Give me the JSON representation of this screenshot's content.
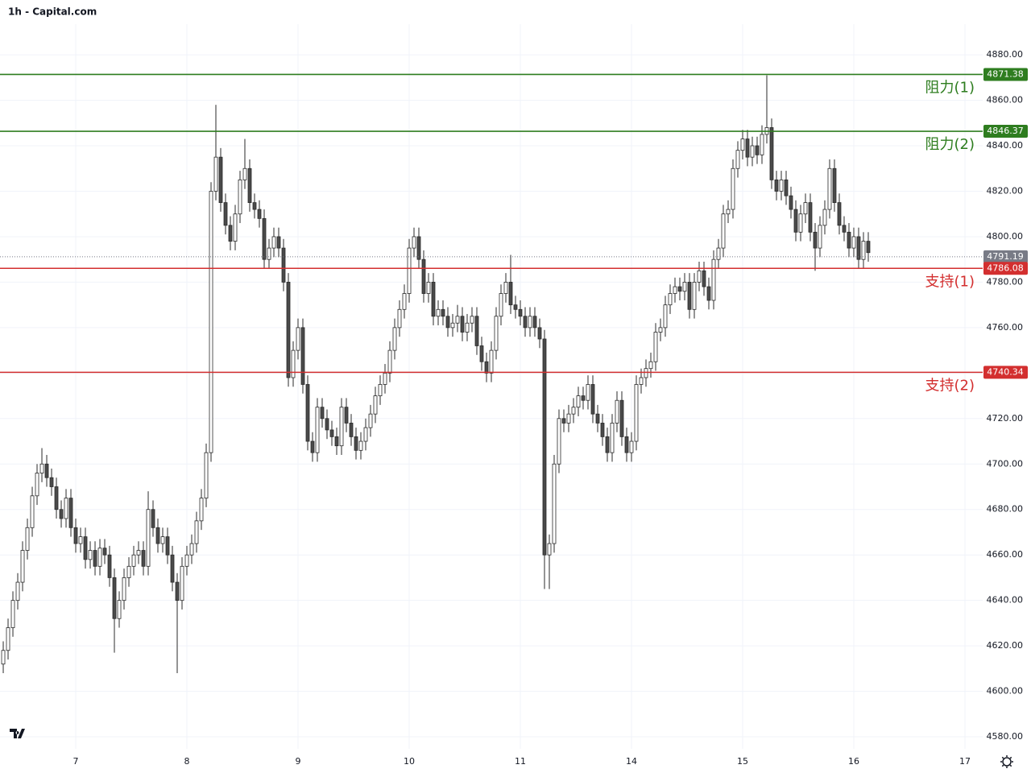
{
  "chart_data": {
    "type": "candlestick",
    "title": "1h - Capital.com",
    "x": [
      -15,
      -14,
      -13,
      -12,
      -11,
      -10,
      -9,
      -8,
      -7,
      -6,
      -5,
      -4,
      -3,
      -2,
      -1,
      0,
      1,
      2,
      3,
      4,
      5,
      6,
      7,
      8,
      9,
      10,
      11,
      12,
      13,
      14,
      15,
      16,
      17,
      18,
      19,
      20,
      21,
      22,
      23,
      24,
      25,
      26,
      27,
      28,
      29,
      30,
      31,
      32,
      33,
      34,
      35,
      36,
      37,
      38,
      39,
      40,
      41,
      42,
      43,
      44,
      45,
      46,
      47,
      48,
      49,
      50,
      51,
      52,
      53,
      54,
      55,
      56,
      57,
      58,
      59,
      60,
      61,
      62,
      63,
      64,
      65,
      66,
      67,
      68,
      69,
      70,
      71,
      72,
      73,
      74,
      75,
      76,
      77,
      78,
      79,
      80,
      81,
      82,
      83,
      84,
      85,
      86,
      87,
      88,
      89,
      90,
      91,
      92,
      93,
      94,
      95,
      96,
      97,
      98,
      99,
      100,
      101,
      102,
      103,
      104,
      105,
      106,
      107,
      108,
      109,
      110,
      111,
      112,
      113,
      114,
      115,
      116,
      117,
      118,
      119,
      120,
      121,
      122,
      123,
      124,
      125,
      126,
      127,
      128,
      129,
      130,
      131,
      132,
      133,
      134,
      135,
      136,
      137,
      138,
      139,
      140,
      141,
      142,
      143,
      144,
      145,
      146,
      147,
      148,
      149,
      150,
      151,
      152,
      153,
      154,
      155,
      156,
      157,
      158,
      159,
      160,
      161,
      162,
      163,
      164
    ],
    "open": [
      4612,
      4618,
      4628,
      4640,
      4648,
      4662,
      4672,
      4686,
      4696,
      4700,
      4694,
      4690,
      4680,
      4676,
      4685,
      4672,
      4665,
      4668,
      4658,
      4662,
      4655,
      4663,
      4660,
      4650,
      4632,
      4640,
      4650,
      4655,
      4660,
      4662,
      4655,
      4680,
      4672,
      4665,
      4668,
      4660,
      4648,
      4640,
      4655,
      4660,
      4665,
      4675,
      4685,
      4705,
      4820,
      4835,
      4815,
      4805,
      4798,
      4810,
      4825,
      4830,
      4815,
      4812,
      4808,
      4790,
      4795,
      4800,
      4795,
      4780,
      4738,
      4750,
      4760,
      4735,
      4710,
      4705,
      4725,
      4720,
      4715,
      4712,
      4708,
      4725,
      4718,
      4712,
      4706,
      4710,
      4716,
      4722,
      4730,
      4735,
      4740,
      4750,
      4760,
      4768,
      4775,
      4795,
      4800,
      4790,
      4775,
      4780,
      4765,
      4768,
      4765,
      4760,
      4762,
      4765,
      4758,
      4762,
      4765,
      4752,
      4745,
      4740,
      4750,
      4765,
      4775,
      4780,
      4770,
      4768,
      4765,
      4760,
      4765,
      4760,
      4755,
      4660,
      4665,
      4700,
      4720,
      4718,
      4722,
      4725,
      4730,
      4728,
      4735,
      4722,
      4718,
      4712,
      4705,
      4718,
      4728,
      4712,
      4705,
      4710,
      4735,
      4738,
      4742,
      4745,
      4758,
      4760,
      4770,
      4775,
      4778,
      4776,
      4780,
      4768,
      4780,
      4785,
      4778,
      4772,
      4790,
      4795,
      4810,
      4812,
      4830,
      4838,
      4843,
      4835,
      4840,
      4836,
      4845,
      4848,
      4825,
      4820,
      4825,
      4818,
      4812,
      4802,
      4810,
      4815,
      4802,
      4795,
      4805,
      4812,
      4830,
      4815,
      4805,
      4802,
      4795,
      4800,
      4790,
      4798
    ],
    "high": [
      4622,
      4632,
      4644,
      4652,
      4666,
      4676,
      4690,
      4700,
      4707,
      4704,
      4698,
      4694,
      4684,
      4689,
      4689,
      4676,
      4672,
      4672,
      4666,
      4666,
      4667,
      4667,
      4664,
      4654,
      4644,
      4654,
      4659,
      4664,
      4666,
      4666,
      4688,
      4684,
      4676,
      4672,
      4672,
      4664,
      4652,
      4659,
      4664,
      4669,
      4679,
      4689,
      4709,
      4824,
      4858,
      4839,
      4819,
      4809,
      4814,
      4829,
      4843,
      4834,
      4819,
      4816,
      4812,
      4799,
      4804,
      4804,
      4799,
      4784,
      4754,
      4764,
      4764,
      4739,
      4714,
      4729,
      4729,
      4724,
      4719,
      4716,
      4729,
      4729,
      4722,
      4716,
      4714,
      4720,
      4726,
      4734,
      4739,
      4744,
      4754,
      4764,
      4772,
      4779,
      4799,
      4804,
      4804,
      4794,
      4784,
      4784,
      4772,
      4772,
      4769,
      4766,
      4770,
      4769,
      4766,
      4769,
      4769,
      4756,
      4749,
      4754,
      4769,
      4779,
      4784,
      4792,
      4774,
      4772,
      4769,
      4769,
      4769,
      4764,
      4759,
      4669,
      4704,
      4724,
      4724,
      4726,
      4729,
      4734,
      4734,
      4739,
      4739,
      4726,
      4722,
      4716,
      4722,
      4732,
      4732,
      4716,
      4714,
      4739,
      4742,
      4746,
      4749,
      4762,
      4764,
      4774,
      4779,
      4782,
      4782,
      4784,
      4784,
      4784,
      4789,
      4789,
      4782,
      4794,
      4799,
      4814,
      4816,
      4834,
      4842,
      4847,
      4847,
      4844,
      4844,
      4849,
      4871,
      4852,
      4829,
      4829,
      4829,
      4822,
      4816,
      4814,
      4819,
      4819,
      4806,
      4809,
      4816,
      4834,
      4834,
      4819,
      4809,
      4806,
      4804,
      4804,
      4802,
      4802
    ],
    "low": [
      4608,
      4614,
      4624,
      4636,
      4644,
      4658,
      4668,
      4682,
      4692,
      4690,
      4686,
      4676,
      4672,
      4672,
      4668,
      4661,
      4661,
      4654,
      4654,
      4651,
      4651,
      4656,
      4646,
      4617,
      4628,
      4636,
      4646,
      4651,
      4656,
      4651,
      4651,
      4668,
      4661,
      4661,
      4656,
      4644,
      4608,
      4636,
      4651,
      4656,
      4661,
      4671,
      4681,
      4701,
      4816,
      4811,
      4801,
      4794,
      4794,
      4806,
      4821,
      4811,
      4808,
      4804,
      4786,
      4786,
      4791,
      4791,
      4776,
      4734,
      4734,
      4746,
      4731,
      4706,
      4701,
      4701,
      4716,
      4711,
      4708,
      4704,
      4704,
      4714,
      4708,
      4702,
      4702,
      4706,
      4712,
      4718,
      4726,
      4731,
      4736,
      4746,
      4756,
      4764,
      4771,
      4791,
      4786,
      4771,
      4771,
      4761,
      4761,
      4761,
      4756,
      4756,
      4758,
      4754,
      4754,
      4758,
      4748,
      4741,
      4736,
      4736,
      4746,
      4761,
      4771,
      4766,
      4764,
      4761,
      4756,
      4756,
      4756,
      4751,
      4645,
      4645,
      4661,
      4696,
      4714,
      4714,
      4718,
      4721,
      4724,
      4724,
      4718,
      4714,
      4708,
      4701,
      4701,
      4714,
      4708,
      4701,
      4701,
      4706,
      4731,
      4734,
      4738,
      4741,
      4754,
      4756,
      4766,
      4771,
      4772,
      4772,
      4764,
      4764,
      4776,
      4774,
      4768,
      4768,
      4786,
      4791,
      4806,
      4808,
      4826,
      4834,
      4831,
      4831,
      4832,
      4832,
      4841,
      4821,
      4816,
      4816,
      4814,
      4808,
      4798,
      4798,
      4806,
      4798,
      4785,
      4791,
      4801,
      4808,
      4811,
      4801,
      4798,
      4791,
      4791,
      4786,
      4786,
      4789
    ],
    "close": [
      4618,
      4628,
      4640,
      4648,
      4662,
      4672,
      4686,
      4696,
      4700,
      4694,
      4690,
      4680,
      4676,
      4685,
      4672,
      4665,
      4668,
      4658,
      4662,
      4655,
      4663,
      4660,
      4650,
      4632,
      4640,
      4650,
      4655,
      4660,
      4662,
      4655,
      4680,
      4672,
      4665,
      4668,
      4660,
      4648,
      4640,
      4655,
      4660,
      4665,
      4675,
      4685,
      4705,
      4820,
      4835,
      4815,
      4805,
      4798,
      4810,
      4825,
      4830,
      4815,
      4812,
      4808,
      4790,
      4795,
      4800,
      4795,
      4780,
      4738,
      4750,
      4760,
      4735,
      4710,
      4705,
      4725,
      4720,
      4715,
      4712,
      4708,
      4725,
      4718,
      4712,
      4706,
      4710,
      4716,
      4722,
      4730,
      4735,
      4740,
      4750,
      4760,
      4768,
      4775,
      4795,
      4800,
      4790,
      4775,
      4780,
      4765,
      4768,
      4765,
      4760,
      4762,
      4765,
      4758,
      4762,
      4765,
      4752,
      4745,
      4740,
      4750,
      4765,
      4775,
      4780,
      4770,
      4768,
      4765,
      4760,
      4765,
      4760,
      4755,
      4660,
      4665,
      4700,
      4720,
      4718,
      4722,
      4725,
      4730,
      4728,
      4735,
      4722,
      4718,
      4712,
      4705,
      4718,
      4728,
      4712,
      4705,
      4710,
      4735,
      4738,
      4742,
      4745,
      4758,
      4760,
      4770,
      4775,
      4778,
      4776,
      4780,
      4768,
      4780,
      4785,
      4778,
      4772,
      4790,
      4795,
      4810,
      4812,
      4830,
      4838,
      4843,
      4835,
      4840,
      4836,
      4845,
      4848,
      4825,
      4820,
      4825,
      4818,
      4812,
      4802,
      4810,
      4815,
      4802,
      4795,
      4805,
      4812,
      4830,
      4815,
      4805,
      4802,
      4795,
      4800,
      4790,
      4798,
      4793
    ],
    "up_color": "#ffffff",
    "down_color": "#4a4a4a",
    "wick_color": "#2a2a2a",
    "xlim": [
      -15.67,
      187.67
    ],
    "xticks": [
      {
        "value": 0,
        "label": "7"
      },
      {
        "value": 23,
        "label": "8"
      },
      {
        "value": 46,
        "label": "9"
      },
      {
        "value": 69,
        "label": "10"
      },
      {
        "value": 92,
        "label": "11"
      },
      {
        "value": 115,
        "label": "14"
      },
      {
        "value": 138,
        "label": "15"
      },
      {
        "value": 161,
        "label": "16"
      },
      {
        "value": 184,
        "label": "17"
      }
    ],
    "ylim": [
      4574.7,
      4893.5
    ],
    "yticks": [
      {
        "value": 4580,
        "label": "4580.00"
      },
      {
        "value": 4600,
        "label": "4600.00"
      },
      {
        "value": 4620,
        "label": "4620.00"
      },
      {
        "value": 4640,
        "label": "4640.00"
      },
      {
        "value": 4660,
        "label": "4660.00"
      },
      {
        "value": 4680,
        "label": "4680.00"
      },
      {
        "value": 4700,
        "label": "4700.00"
      },
      {
        "value": 4720,
        "label": "4720.00"
      },
      {
        "value": 4740,
        "label": "4740.00"
      },
      {
        "value": 4760,
        "label": "4760.00"
      },
      {
        "value": 4780,
        "label": "4780.00"
      },
      {
        "value": 4800,
        "label": "4800.00"
      },
      {
        "value": 4820,
        "label": "4820.00"
      },
      {
        "value": 4840,
        "label": "4840.00"
      },
      {
        "value": 4860,
        "label": "4860.00"
      },
      {
        "value": 4880,
        "label": "4880.00"
      }
    ],
    "grid": true,
    "last_price": 4791.19,
    "last_price_color": "#787b86",
    "levels": [
      {
        "name": "阻力(1)",
        "value": 4871.38,
        "color": "#2e7d1f"
      },
      {
        "name": "阻力(2)",
        "value": 4846.37,
        "color": "#2e7d1f"
      },
      {
        "name": "支持(1)",
        "value": 4786.08,
        "color": "#d32f2f"
      },
      {
        "name": "支持(2)",
        "value": 4740.34,
        "color": "#d32f2f"
      }
    ]
  }
}
